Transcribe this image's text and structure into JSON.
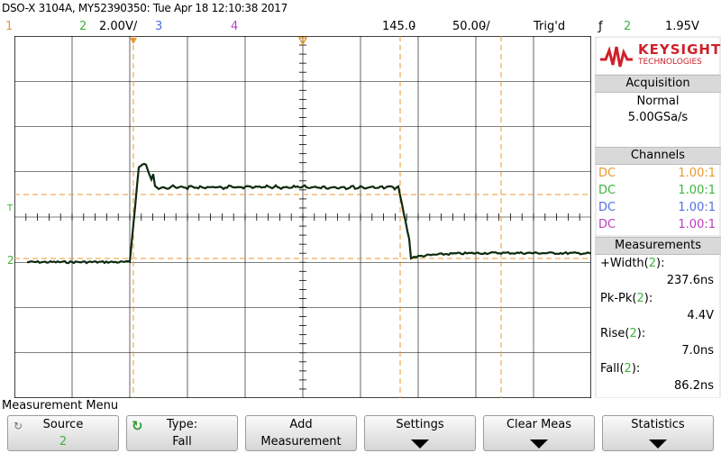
{
  "title_line": "DSO-X 3104A, MY52390350: Tue Apr 18 12:10:38 2017",
  "status": {
    "ch1": "1",
    "ch2": "2",
    "ch2_scale": "2.00V/",
    "ch3": "3",
    "ch4": "4",
    "time_delay": "145.0̵",
    "time_scale": "50.00̵/",
    "trigger_state": "Trig'd",
    "trigger_edge_symbol": "ƒ",
    "trigger_source": "2",
    "trigger_level": "1.95V"
  },
  "colors": {
    "ch1": "#e89a30",
    "ch2": "#3cb43c",
    "ch3": "#4f6fe0",
    "ch4": "#c03cc0",
    "trace": "#0e2a0e",
    "cursor": "#e89a30",
    "grid": "#000000"
  },
  "markers": {
    "trigger_marker": "T",
    "ch2_ground": "2"
  },
  "brand": {
    "name": "KEYSIGHT",
    "sub": "TECHNOLOGIES"
  },
  "acquisition": {
    "heading": "Acquisition",
    "mode": "Normal",
    "rate": "5.00GSa/s"
  },
  "channels": {
    "heading": "Channels",
    "rows": [
      {
        "coupling": "DC",
        "probe": "1.00:1",
        "color": "#e89a30"
      },
      {
        "coupling": "DC",
        "probe": "1.00:1",
        "color": "#3cb43c"
      },
      {
        "coupling": "DC",
        "probe": "1.00:1",
        "color": "#4f6fe0"
      },
      {
        "coupling": "DC",
        "probe": "1.00:1",
        "color": "#c03cc0"
      }
    ]
  },
  "measurements": {
    "heading": "Measurements",
    "items": [
      {
        "name": "+Width(",
        "ch": "2",
        "close": "):",
        "value": "237.6ns"
      },
      {
        "name": "Pk-Pk(",
        "ch": "2",
        "close": "):",
        "value": "4.4V"
      },
      {
        "name": "Rise(",
        "ch": "2",
        "close": "):",
        "value": "7.0ns"
      },
      {
        "name": "Fall(",
        "ch": "2",
        "close": "):",
        "value": "86.2ns"
      }
    ]
  },
  "menu": {
    "title": "Measurement Menu",
    "softkeys": [
      {
        "l1": "Source",
        "l2": "2"
      },
      {
        "l1": "Type:",
        "l2": "Fall"
      },
      {
        "l1": "Add",
        "l2": "Measurement"
      },
      {
        "l1": "Settings",
        "l2": ""
      },
      {
        "l1": "Clear Meas",
        "l2": ""
      },
      {
        "l1": "Statistics",
        "l2": ""
      }
    ]
  }
}
